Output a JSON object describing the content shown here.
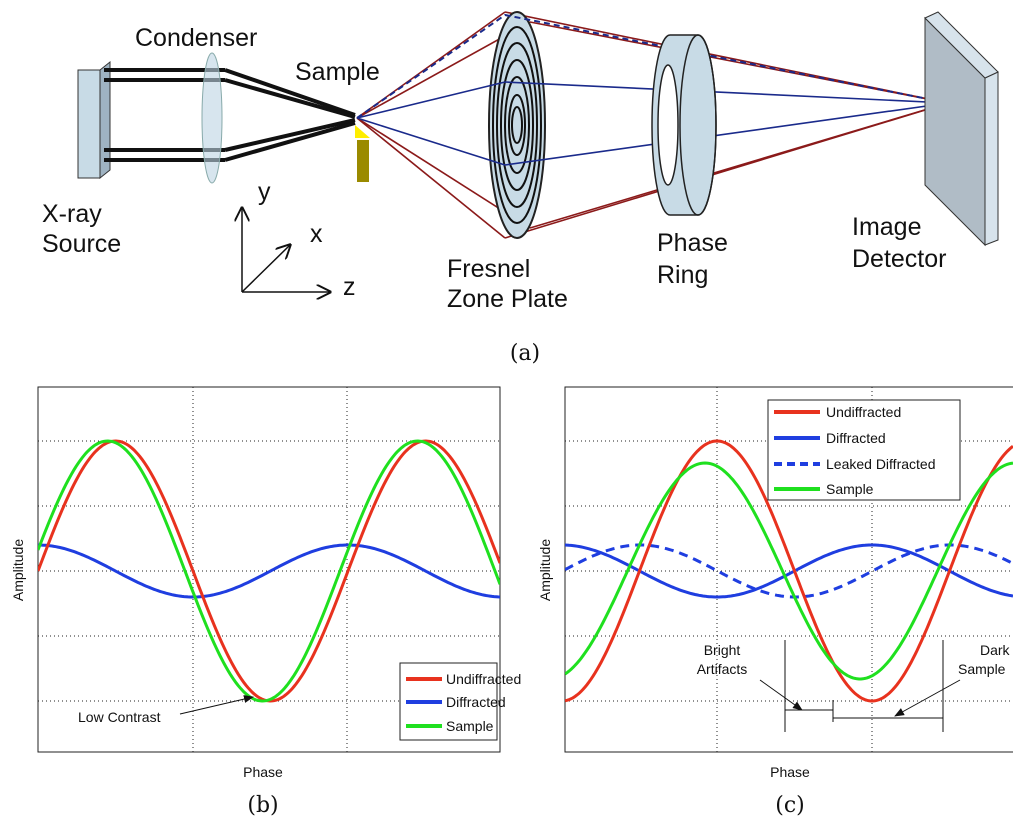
{
  "panel_a": {
    "labels": {
      "condenser": "Condenser",
      "sample": "Sample",
      "source_1": "X-ray",
      "source_2": "Source",
      "axis_y": "y",
      "axis_x": "x",
      "axis_z": "z",
      "zone_plate_1": "Fresnel",
      "zone_plate_2": "Zone Plate",
      "phase_ring_1": "Phase",
      "phase_ring_2": "Ring",
      "detector_1": "Image",
      "detector_2": "Detector"
    },
    "caption": "(a)"
  },
  "panel_b": {
    "x_label": "Phase",
    "y_label": "Amplitude",
    "legend": [
      "Undiffracted",
      "Diffracted",
      "Sample"
    ],
    "annotation": "Low Contrast",
    "caption": "(b)"
  },
  "panel_c": {
    "x_label": "Phase",
    "y_label": "Amplitude",
    "legend": [
      "Undiffracted",
      "Diffracted",
      "Leaked Diffracted",
      "Sample"
    ],
    "annotation_left_1": "Bright",
    "annotation_left_2": "Artifacts",
    "annotation_right_1": "Dark",
    "annotation_right_2": "Sample",
    "caption": "(c)"
  }
}
